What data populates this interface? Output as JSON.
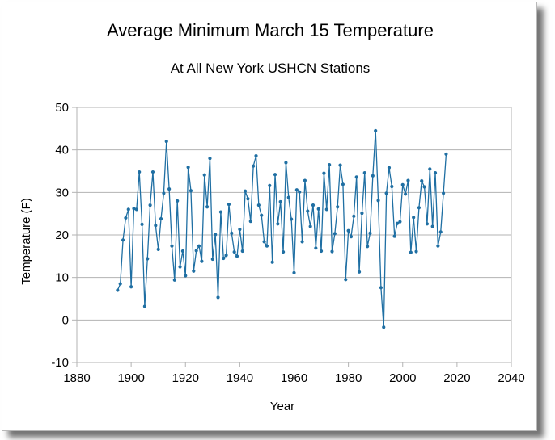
{
  "chart_data": {
    "type": "line",
    "title": "Average Minimum March 15 Temperature",
    "subtitle": "At All New York USHCN Stations",
    "xlabel": "Year",
    "ylabel": "Temperature (F)",
    "xlim": [
      1880,
      2040
    ],
    "ylim": [
      -10,
      50
    ],
    "xticks": [
      1880,
      1900,
      1920,
      1940,
      1960,
      1980,
      2000,
      2020,
      2040
    ],
    "yticks": [
      -10,
      0,
      10,
      20,
      30,
      40,
      50
    ],
    "grid": "horizontal",
    "line_color": "#1f6fa3",
    "series": [
      {
        "x": [
          1895,
          1896,
          1897,
          1898,
          1899,
          1900,
          1901,
          1902,
          1903,
          1904,
          1905,
          1906,
          1907,
          1908,
          1909,
          1910,
          1911,
          1912,
          1913,
          1914,
          1915,
          1916,
          1917,
          1918,
          1919,
          1920,
          1921,
          1922,
          1923,
          1924,
          1925,
          1926,
          1927,
          1928,
          1929,
          1930,
          1931,
          1932,
          1933,
          1934,
          1935,
          1936,
          1937,
          1938,
          1939,
          1940,
          1941,
          1942,
          1943,
          1944,
          1945,
          1946,
          1947,
          1948,
          1949,
          1950,
          1951,
          1952,
          1953,
          1954,
          1955,
          1956,
          1957,
          1958,
          1959,
          1960,
          1961,
          1962,
          1963,
          1964,
          1965,
          1966,
          1967,
          1968,
          1969,
          1970,
          1971,
          1972,
          1973,
          1974,
          1975,
          1976,
          1977,
          1978,
          1979,
          1980,
          1981,
          1982,
          1983,
          1984,
          1985,
          1986,
          1987,
          1988,
          1989,
          1990,
          1991,
          1992,
          1993,
          1994,
          1995,
          1996,
          1997,
          1998,
          1999,
          2000,
          2001,
          2002,
          2003,
          2004,
          2005,
          2006,
          2007,
          2008,
          2009,
          2010,
          2011,
          2012,
          2013,
          2014,
          2015,
          2016
        ],
        "values": [
          7,
          8.5,
          18.8,
          24,
          26,
          7.8,
          26.2,
          26,
          34.8,
          22.5,
          3.2,
          14.4,
          27,
          34.8,
          22.2,
          16.6,
          23.8,
          29.8,
          42,
          30.8,
          17.4,
          9.4,
          28,
          12.5,
          16.2,
          10.4,
          35.9,
          30.4,
          11.5,
          16.3,
          17.4,
          13.8,
          34.1,
          26.6,
          38,
          14.3,
          20.1,
          5.3,
          25.4,
          14.5,
          15.2,
          27.2,
          20.4,
          16,
          15,
          21.3,
          16.2,
          30.3,
          28.5,
          23.2,
          36.2,
          38.6,
          27,
          24.6,
          18.4,
          17.4,
          31.6,
          13.6,
          34.2,
          22.6,
          27.8,
          16,
          37,
          28.8,
          23.7,
          11.1,
          30.6,
          30.1,
          18.4,
          32.8,
          25.6,
          22,
          27,
          16.9,
          26.1,
          16.2,
          34.5,
          26,
          36.5,
          16.1,
          20.3,
          26.6,
          36.4,
          31.9,
          9.5,
          21,
          19.6,
          24.4,
          33.6,
          11.3,
          25.1,
          34.6,
          17.3,
          20.4,
          33.9,
          44.5,
          28.1,
          7.6,
          -1.7,
          29.8,
          35.8,
          31.4,
          19.7,
          22.7,
          23.1,
          31.8,
          29.6,
          32.8,
          15.9,
          24.1,
          16.1,
          26.4,
          32.7,
          31.3,
          22.6,
          35.5,
          22,
          34.6,
          17.4,
          20.7,
          29.8,
          39
        ]
      }
    ]
  }
}
